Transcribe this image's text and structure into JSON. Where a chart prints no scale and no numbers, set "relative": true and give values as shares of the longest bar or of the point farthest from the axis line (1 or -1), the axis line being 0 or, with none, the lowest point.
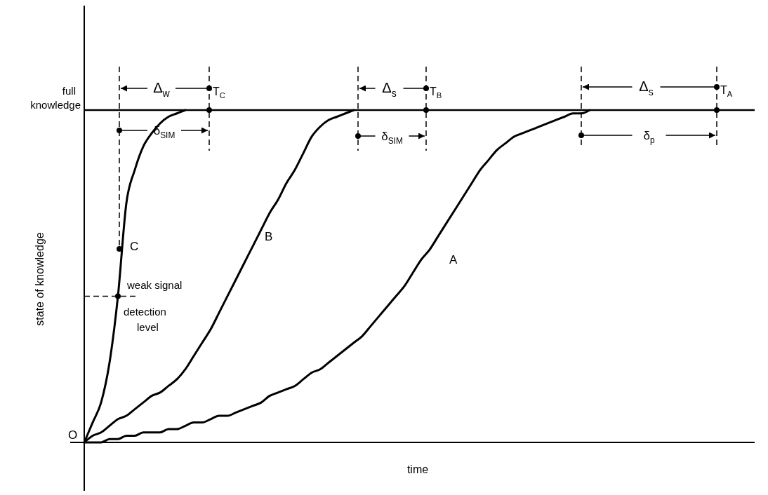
{
  "chart_data": {
    "type": "line",
    "relative": true,
    "xlabel": "time",
    "ylabel": "state of knowledge",
    "line_style": "solid",
    "categories": [
      null,
      null,
      null,
      null,
      null,
      null,
      null,
      null,
      null,
      null,
      null,
      null,
      null,
      null,
      null,
      null,
      null,
      null,
      null,
      null,
      null,
      null,
      null,
      null,
      null,
      null,
      null,
      null,
      null,
      null,
      null,
      null,
      null,
      null,
      null,
      null,
      null,
      null,
      null,
      null,
      null,
      null,
      null,
      null,
      null,
      null,
      null,
      null,
      null,
      null,
      null,
      null,
      null,
      null,
      null,
      null,
      null,
      null,
      null,
      null,
      null,
      null,
      null,
      null,
      null,
      null,
      null,
      null,
      null,
      null,
      null,
      null,
      null,
      null,
      null,
      null,
      null,
      null,
      null,
      null
    ],
    "series": [
      {
        "name": "C",
        "color": "#000000",
        "values": [
          0,
          0.06,
          0.12,
          0.24,
          0.44,
          0.72,
          0.82,
          0.89,
          0.93,
          0.96,
          0.98,
          0.99,
          1,
          null,
          null,
          null,
          null,
          null,
          null,
          null,
          null,
          null,
          null,
          null,
          null,
          null,
          null,
          null,
          null,
          null,
          null,
          null,
          null,
          null,
          null,
          null,
          null,
          null,
          null,
          null,
          null,
          null,
          null,
          null,
          null,
          null,
          null,
          null,
          null,
          null,
          null,
          null,
          null,
          null,
          null,
          null,
          null,
          null,
          null,
          null,
          null,
          null,
          null,
          null,
          null,
          null,
          null,
          null,
          null,
          null,
          null,
          null,
          null,
          null,
          null,
          null,
          null,
          null,
          null,
          null
        ]
      },
      {
        "name": "B",
        "color": "#000000",
        "values": [
          0,
          0.02,
          0.03,
          0.05,
          0.07,
          0.08,
          0.1,
          0.12,
          0.14,
          0.15,
          0.17,
          0.19,
          0.22,
          0.26,
          0.3,
          0.34,
          0.39,
          0.44,
          0.49,
          0.54,
          0.59,
          0.64,
          0.69,
          0.73,
          0.78,
          0.82,
          0.87,
          0.92,
          0.95,
          0.97,
          0.98,
          0.99,
          1,
          null,
          null,
          null,
          null,
          null,
          null,
          null,
          null,
          null,
          null,
          null,
          null,
          null,
          null,
          null,
          null,
          null,
          null,
          null,
          null,
          null,
          null,
          null,
          null,
          null,
          null,
          null,
          null,
          null,
          null,
          null,
          null,
          null,
          null,
          null,
          null,
          null,
          null,
          null,
          null,
          null,
          null,
          null,
          null,
          null,
          null,
          null
        ]
      },
      {
        "name": "A",
        "color": "#000000",
        "values": [
          0,
          0,
          0,
          0.01,
          0.01,
          0.02,
          0.02,
          0.03,
          0.03,
          0.03,
          0.04,
          0.04,
          0.05,
          0.06,
          0.06,
          0.07,
          0.08,
          0.08,
          0.09,
          0.1,
          0.11,
          0.12,
          0.14,
          0.15,
          0.16,
          0.17,
          0.19,
          0.21,
          0.22,
          0.24,
          0.26,
          0.28,
          0.3,
          0.32,
          0.35,
          0.38,
          0.41,
          0.44,
          0.47,
          0.51,
          0.55,
          0.58,
          0.62,
          0.66,
          0.7,
          0.74,
          0.78,
          0.82,
          0.85,
          0.88,
          0.9,
          0.92,
          0.93,
          0.94,
          0.95,
          0.96,
          0.97,
          0.98,
          0.99,
          0.99,
          1,
          null,
          null,
          null,
          null,
          null,
          null,
          null,
          null,
          null,
          null,
          null,
          null,
          null,
          null,
          null,
          null,
          null,
          null,
          null
        ]
      }
    ],
    "ref_lines": [
      {
        "axis": "y",
        "value": 1,
        "label": "full knowledge"
      }
    ],
    "annotations": [
      "Δ$_{w}$",
      "T$_{C}$",
      "δ$_{SIM}$",
      "Δ$_{s}$",
      "T$_{B}$",
      "δ$_{SIM}$",
      "Δ$_{s}$",
      "T$_{A}$",
      "δ$_{p}$",
      "weak signal detection level",
      "O"
    ]
  }
}
